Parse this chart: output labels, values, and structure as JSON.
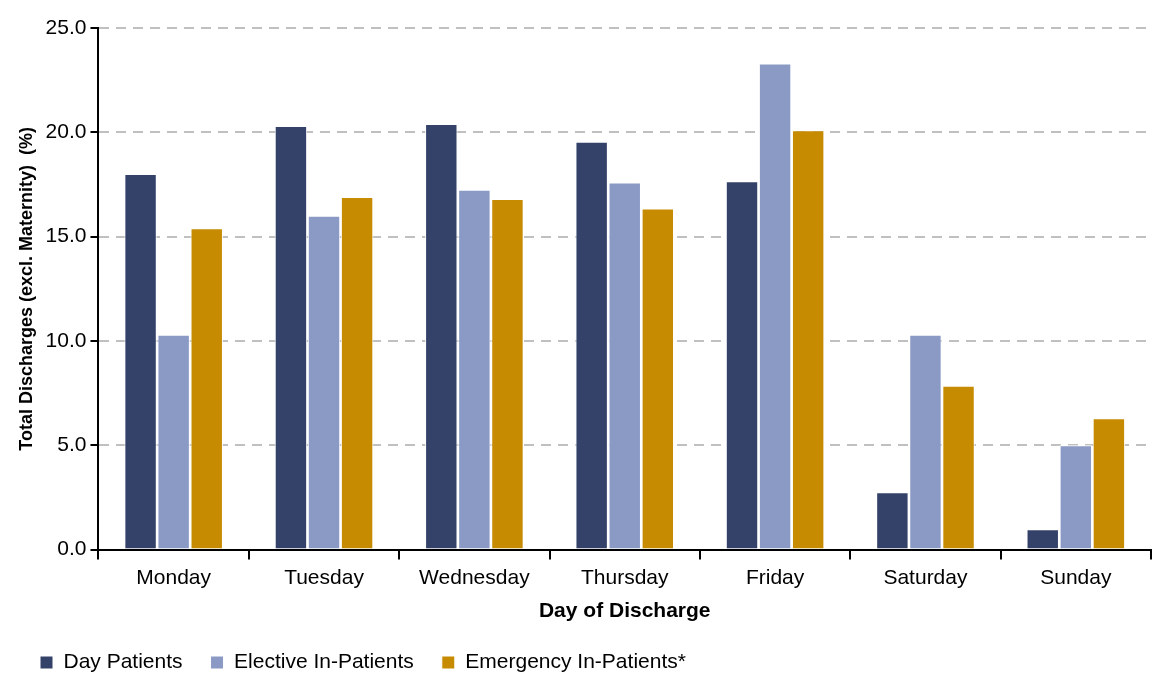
{
  "chart_data": {
    "type": "bar",
    "xlabel": "Day of Discharge",
    "ylabel": "Total Discharges (excl. Maternity)  (%)",
    "categories": [
      "Monday",
      "Tuesday",
      "Wednesday",
      "Thursday",
      "Friday",
      "Saturday",
      "Sunday"
    ],
    "series": [
      {
        "name": "Day Patients",
        "color": "#344269",
        "values": [
          18.0,
          20.3,
          20.4,
          19.55,
          17.65,
          2.75,
          0.98
        ]
      },
      {
        "name": "Elective In-Patients",
        "color": "#8a9ac4",
        "values": [
          10.3,
          16.0,
          17.25,
          17.6,
          23.3,
          10.3,
          5.0
        ]
      },
      {
        "name": "Emergency In-Patients*",
        "color": "#c68b00",
        "values": [
          15.4,
          16.9,
          16.8,
          16.35,
          20.1,
          7.85,
          6.3
        ]
      }
    ],
    "ylim": [
      0,
      25
    ],
    "yticks": [
      {
        "value": 0,
        "label": "0.0"
      },
      {
        "value": 5,
        "label": "5.0"
      },
      {
        "value": 10,
        "label": "10.0"
      },
      {
        "value": 15,
        "label": "15.0"
      },
      {
        "value": 20,
        "label": "20.0"
      },
      {
        "value": 25,
        "label": "25.0"
      }
    ],
    "grid": "y",
    "legend": "bottom"
  }
}
